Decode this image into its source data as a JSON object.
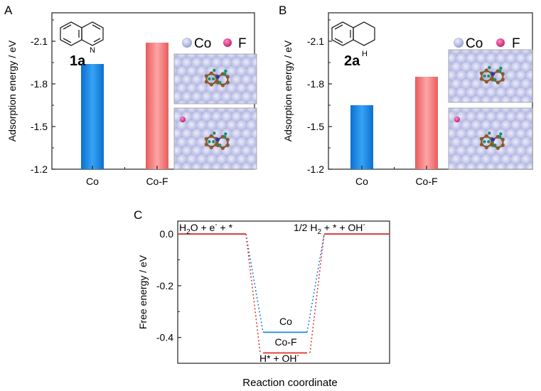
{
  "colors": {
    "co": "#1e88e5",
    "cof": "#f47c7c",
    "line_red": "#e53935",
    "line_blue": "#1e88e5",
    "atom_co": "#c6c9ea",
    "atom_f": "#e8287c",
    "carbon": "#8b5a2b",
    "hydrogen": "#1b8f6b",
    "nitrogen": "#2233cc"
  },
  "chart_data": [
    {
      "type": "bar",
      "panel": "A",
      "ylabel": "Adsorption energy / eV",
      "ylim": [
        -1.2,
        -2.3
      ],
      "yticks": [
        "-1.2",
        "-1.5",
        "-1.8",
        "-2.1"
      ],
      "categories": [
        "Co",
        "Co-F"
      ],
      "values": [
        -1.94,
        -2.09
      ],
      "molecule_label": "1a",
      "molecule_atom": "N",
      "legend": [
        "Co",
        "F"
      ]
    },
    {
      "type": "bar",
      "panel": "B",
      "ylabel": "Adsorption energy / eV",
      "ylim": [
        -1.2,
        -2.3
      ],
      "yticks": [
        "-1.2",
        "-1.5",
        "-1.8",
        "-2.1"
      ],
      "categories": [
        "Co",
        "Co-F"
      ],
      "values": [
        -1.65,
        -1.85
      ],
      "molecule_label": "2a",
      "molecule_atom": "H",
      "legend": [
        "Co",
        "F"
      ]
    },
    {
      "type": "line",
      "panel": "C",
      "xlabel": "Reaction coordinate",
      "ylabel": "Free energy / eV",
      "ylim": [
        -0.5,
        0.05
      ],
      "yticks": [
        "0.0",
        "-0.2",
        "-0.4"
      ],
      "series": [
        {
          "name": "Co",
          "values": [
            0.0,
            -0.38,
            0.0
          ]
        },
        {
          "name": "Co-F",
          "values": [
            0.0,
            -0.46,
            0.0
          ]
        }
      ],
      "annotations": {
        "start_state": "H2O + e- + *",
        "end_state": "1/2 H2 + * + OH-",
        "intermediate": "H* + OH-"
      }
    }
  ]
}
